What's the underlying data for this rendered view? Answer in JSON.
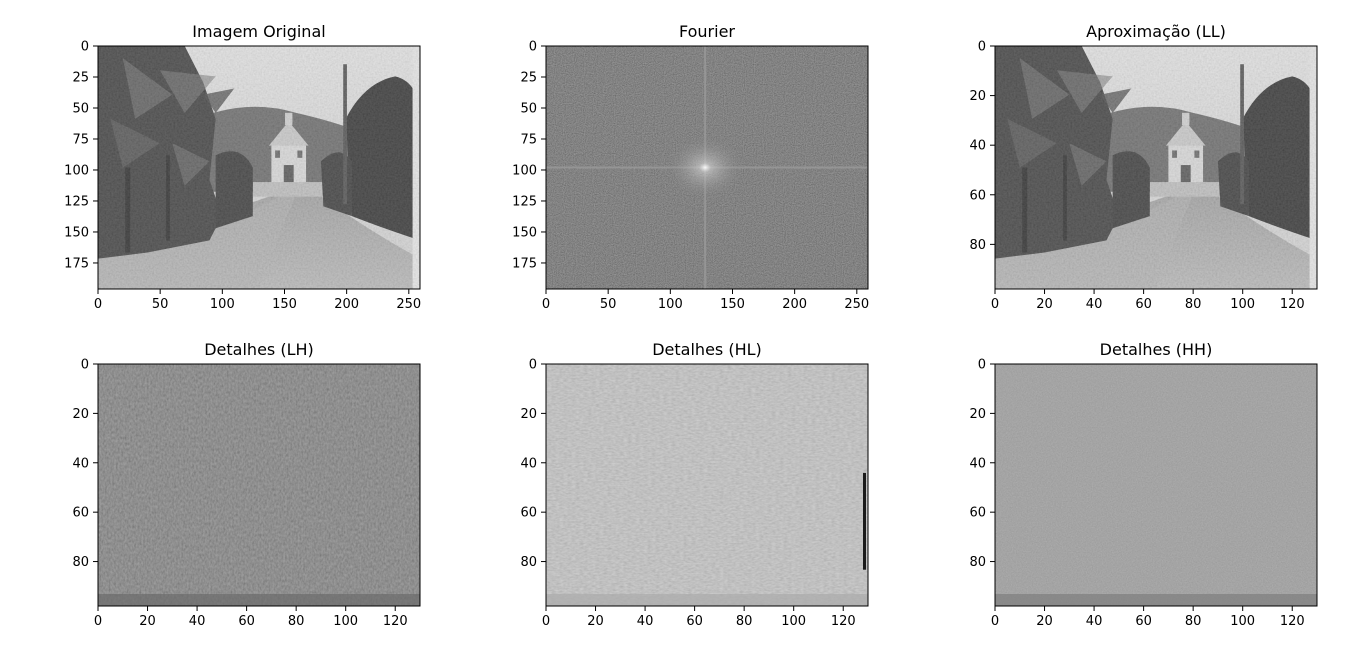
{
  "figure": {
    "background": "#ffffff",
    "axis_color": "#000000"
  },
  "chart_data": [
    {
      "type": "heatmap",
      "title": "Imagem Original",
      "content": "grayscale photograph: rural road with banana trees on the left, white chapel in the center background, dense trees on the right",
      "colormap": "gray",
      "xlim": [
        0,
        259
      ],
      "ylim": [
        196,
        0
      ],
      "xticks": [
        0,
        50,
        100,
        150,
        200,
        250
      ],
      "yticks": [
        0,
        25,
        50,
        75,
        100,
        125,
        150,
        175
      ]
    },
    {
      "type": "heatmap",
      "title": "Fourier",
      "content": "log-magnitude spectrum: dark noisy field with bright horizontal and vertical cross lines through a bright center point",
      "colormap": "gray",
      "xlim": [
        0,
        259
      ],
      "ylim": [
        196,
        0
      ],
      "xticks": [
        0,
        50,
        100,
        150,
        200,
        250
      ],
      "yticks": [
        0,
        25,
        50,
        75,
        100,
        125,
        150,
        175
      ]
    },
    {
      "type": "heatmap",
      "title": "Aproximação (LL)",
      "content": "half-resolution approximation of the original photograph",
      "colormap": "gray",
      "xlim": [
        0,
        130
      ],
      "ylim": [
        98,
        0
      ],
      "xticks": [
        0,
        20,
        40,
        60,
        80,
        100,
        120
      ],
      "yticks": [
        0,
        20,
        40,
        60,
        80
      ]
    },
    {
      "type": "heatmap",
      "title": "Detalhes (LH)",
      "content": "horizontal detail coefficients: mid-dark gray field with fine edge texture",
      "colormap": "gray",
      "xlim": [
        0,
        130
      ],
      "ylim": [
        98,
        0
      ],
      "xticks": [
        0,
        20,
        40,
        60,
        80,
        100,
        120
      ],
      "yticks": [
        0,
        20,
        40,
        60,
        80
      ]
    },
    {
      "type": "heatmap",
      "title": "Detalhes (HL)",
      "content": "vertical detail coefficients: light gray field with vertical edge texture and a dark vertical stripe at the right border",
      "colormap": "gray",
      "xlim": [
        0,
        130
      ],
      "ylim": [
        98,
        0
      ],
      "xticks": [
        0,
        20,
        40,
        60,
        80,
        100,
        120
      ],
      "yticks": [
        0,
        20,
        40,
        60,
        80
      ]
    },
    {
      "type": "heatmap",
      "title": "Detalhes (HH)",
      "content": "diagonal detail coefficients: mid gray field with sparse speckle noise",
      "colormap": "gray",
      "xlim": [
        0,
        130
      ],
      "ylim": [
        98,
        0
      ],
      "xticks": [
        0,
        20,
        40,
        60,
        80,
        100,
        120
      ],
      "yticks": [
        0,
        20,
        40,
        60,
        80
      ]
    }
  ]
}
